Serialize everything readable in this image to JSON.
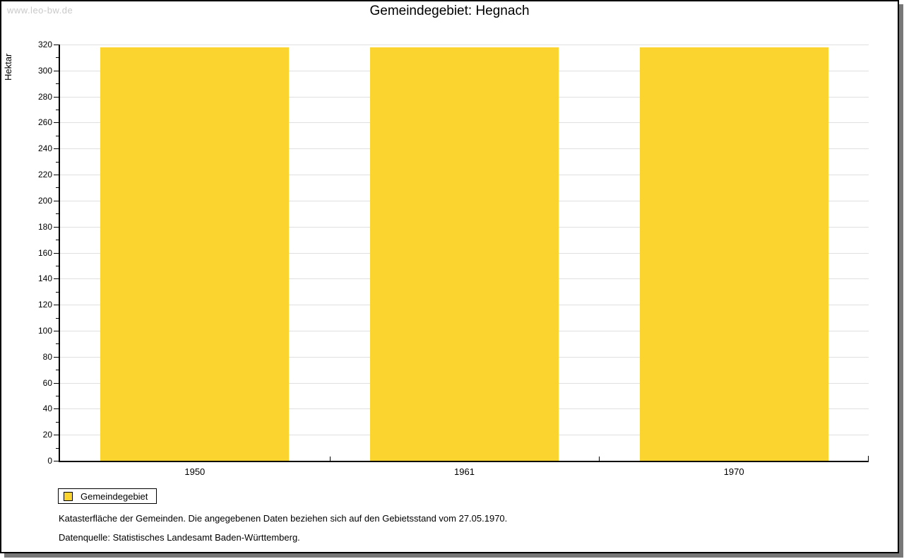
{
  "watermark": "www.leo-bw.de",
  "title": "Gemeindegebiet: Hegnach",
  "chart_data": {
    "type": "bar",
    "title": "Gemeindegebiet: Hegnach",
    "xlabel": "",
    "ylabel": "Hektar",
    "categories": [
      "1950",
      "1961",
      "1970"
    ],
    "series": [
      {
        "name": "Gemeindegebiet",
        "values": [
          318,
          318,
          318
        ],
        "color": "#fcd42f"
      }
    ],
    "ylim": [
      0,
      320
    ],
    "ytick_major": 20,
    "ytick_minor": 10,
    "ytick_labels": [
      0,
      20,
      40,
      60,
      80,
      100,
      120,
      140,
      160,
      180,
      200,
      220,
      240,
      260,
      280,
      300,
      320
    ],
    "grid": "horizontal-major-only",
    "bar_width_fraction": 0.7,
    "legend_position": "bottom-left"
  },
  "legend": {
    "items": [
      {
        "label": "Gemeindegebiet",
        "color": "#fcd42f"
      }
    ]
  },
  "footer": {
    "line1": "Katasterfläche der Gemeinden. Die angegebenen Daten beziehen sich auf den Gebietsstand vom 27.05.1970.",
    "line2": "Datenquelle: Statistisches Landesamt Baden-Württemberg."
  },
  "colors": {
    "bar": "#fcd42f",
    "gridline": "#e0e0e0",
    "axis": "#000000",
    "shadow": "#777777",
    "watermark_text": "#c9c9c9"
  }
}
